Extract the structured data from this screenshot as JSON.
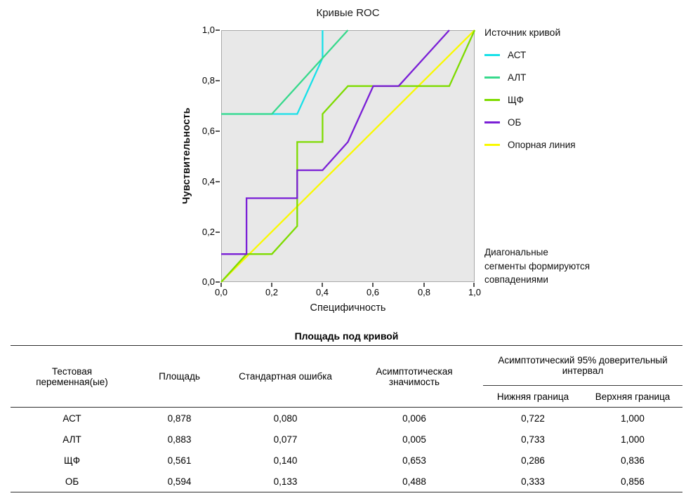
{
  "chart": {
    "title": "Кривые ROC",
    "y_axis": {
      "label": "Чувствительность",
      "ticks_top_to_bottom": [
        "1,0",
        "0,8",
        "0,6",
        "0,4",
        "0,2",
        "0,0"
      ]
    },
    "x_axis": {
      "label": "Специфичность",
      "ticks": [
        "0,0",
        "0,2",
        "0,4",
        "0,6",
        "0,8",
        "1,0"
      ]
    },
    "legend_title": "Источник кривой",
    "annotation_lines": [
      "Диагональные",
      "сегменты формируются",
      "совпадениями"
    ]
  },
  "chart_data": {
    "type": "line",
    "title": "Кривые ROC",
    "xlabel": "Специфичность",
    "ylabel": "Чувствительность",
    "xlim": [
      0,
      1
    ],
    "ylim": [
      0,
      1
    ],
    "x_tick_labels": [
      "0,0",
      "0,2",
      "0,4",
      "0,6",
      "0,8",
      "1,0"
    ],
    "y_tick_labels": [
      "0,0",
      "0,2",
      "0,4",
      "0,6",
      "0,8",
      "1,0"
    ],
    "grid": false,
    "plot_background": "#E8E8E8",
    "legend_title": "Источник кривой",
    "legend_position": "right",
    "annotation": "Диагональные сегменты формируются совпадениями",
    "series": [
      {
        "name": "АСТ",
        "color": "#17E0E8",
        "points": [
          [
            0,
            0.667
          ],
          [
            0.3,
            0.667
          ],
          [
            0.4,
            0.889
          ],
          [
            0.4,
            1.0
          ]
        ]
      },
      {
        "name": "АЛТ",
        "color": "#37D98C",
        "points": [
          [
            0,
            0.667
          ],
          [
            0.2,
            0.667
          ],
          [
            0.5,
            1.0
          ]
        ]
      },
      {
        "name": "ЩФ",
        "color": "#7EDB00",
        "points": [
          [
            0,
            0
          ],
          [
            0.1,
            0.111
          ],
          [
            0.2,
            0.111
          ],
          [
            0.3,
            0.222
          ],
          [
            0.3,
            0.556
          ],
          [
            0.4,
            0.556
          ],
          [
            0.4,
            0.667
          ],
          [
            0.5,
            0.778
          ],
          [
            0.9,
            0.778
          ],
          [
            1.0,
            1.0
          ]
        ]
      },
      {
        "name": "ОБ",
        "color": "#7A1FD6",
        "points": [
          [
            0,
            0.111
          ],
          [
            0.1,
            0.111
          ],
          [
            0.1,
            0.333
          ],
          [
            0.3,
            0.333
          ],
          [
            0.3,
            0.444
          ],
          [
            0.4,
            0.444
          ],
          [
            0.5,
            0.556
          ],
          [
            0.6,
            0.778
          ],
          [
            0.7,
            0.778
          ],
          [
            0.9,
            1.0
          ]
        ]
      },
      {
        "name": "Опорная линия",
        "color": "#F9F900",
        "points": [
          [
            0,
            0
          ],
          [
            1.0,
            1.0
          ]
        ]
      }
    ]
  },
  "table": {
    "title": "Площадь под кривой",
    "headers": {
      "test_variable": "Тестовая переменная(ые)",
      "area": "Площадь",
      "std_error": "Стандартная ошибка",
      "asymp_sig": "Асимптотическая значимость",
      "ci_span": "Асимптотический 95% доверительный интервал",
      "ci_lower": "Нижняя граница",
      "ci_upper": "Верхняя граница"
    },
    "rows": [
      [
        "АСТ",
        "0,878",
        "0,080",
        "0,006",
        "0,722",
        "1,000"
      ],
      [
        "АЛТ",
        "0,883",
        "0,077",
        "0,005",
        "0,733",
        "1,000"
      ],
      [
        "ЩФ",
        "0,561",
        "0,140",
        "0,653",
        "0,286",
        "0,836"
      ],
      [
        "ОБ",
        "0,594",
        "0,133",
        "0,488",
        "0,333",
        "0,856"
      ]
    ]
  }
}
